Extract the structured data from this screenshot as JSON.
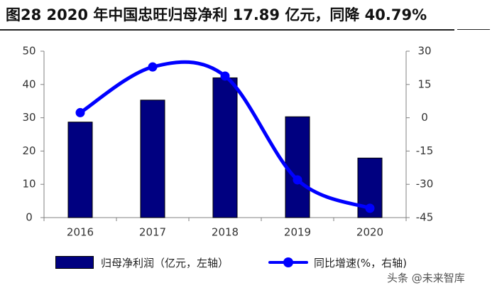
{
  "title": "图28 2020 年中国忠旺归母净利 17.89 亿元，同降 40.79%",
  "chart_data": {
    "type": "bar",
    "categories": [
      "2016",
      "2017",
      "2018",
      "2019",
      "2020"
    ],
    "series": [
      {
        "name": "归母净利润（亿元，左轴）",
        "kind": "bar",
        "axis": "left",
        "color": "#000080",
        "values": [
          28.7,
          35.3,
          42.0,
          30.3,
          17.89
        ]
      },
      {
        "name": "同比增速(%，右轴)",
        "kind": "line",
        "axis": "right",
        "color": "#0000ff",
        "values": [
          2.3,
          22.9,
          18.8,
          -28.0,
          -40.79
        ]
      }
    ],
    "y_left": {
      "min": 0,
      "max": 50,
      "ticks": [
        "0",
        "10",
        "20",
        "30",
        "40",
        "50"
      ]
    },
    "y_right": {
      "min": -45,
      "max": 30,
      "ticks": [
        "-45",
        "-30",
        "-15",
        "0",
        "15",
        "30"
      ]
    },
    "grid": false,
    "legend_position": "bottom"
  },
  "legend": {
    "bar_label": "归母净利润（亿元，左轴）",
    "line_label": "同比增速(%，右轴)"
  },
  "watermark": "头条 @未来智库"
}
